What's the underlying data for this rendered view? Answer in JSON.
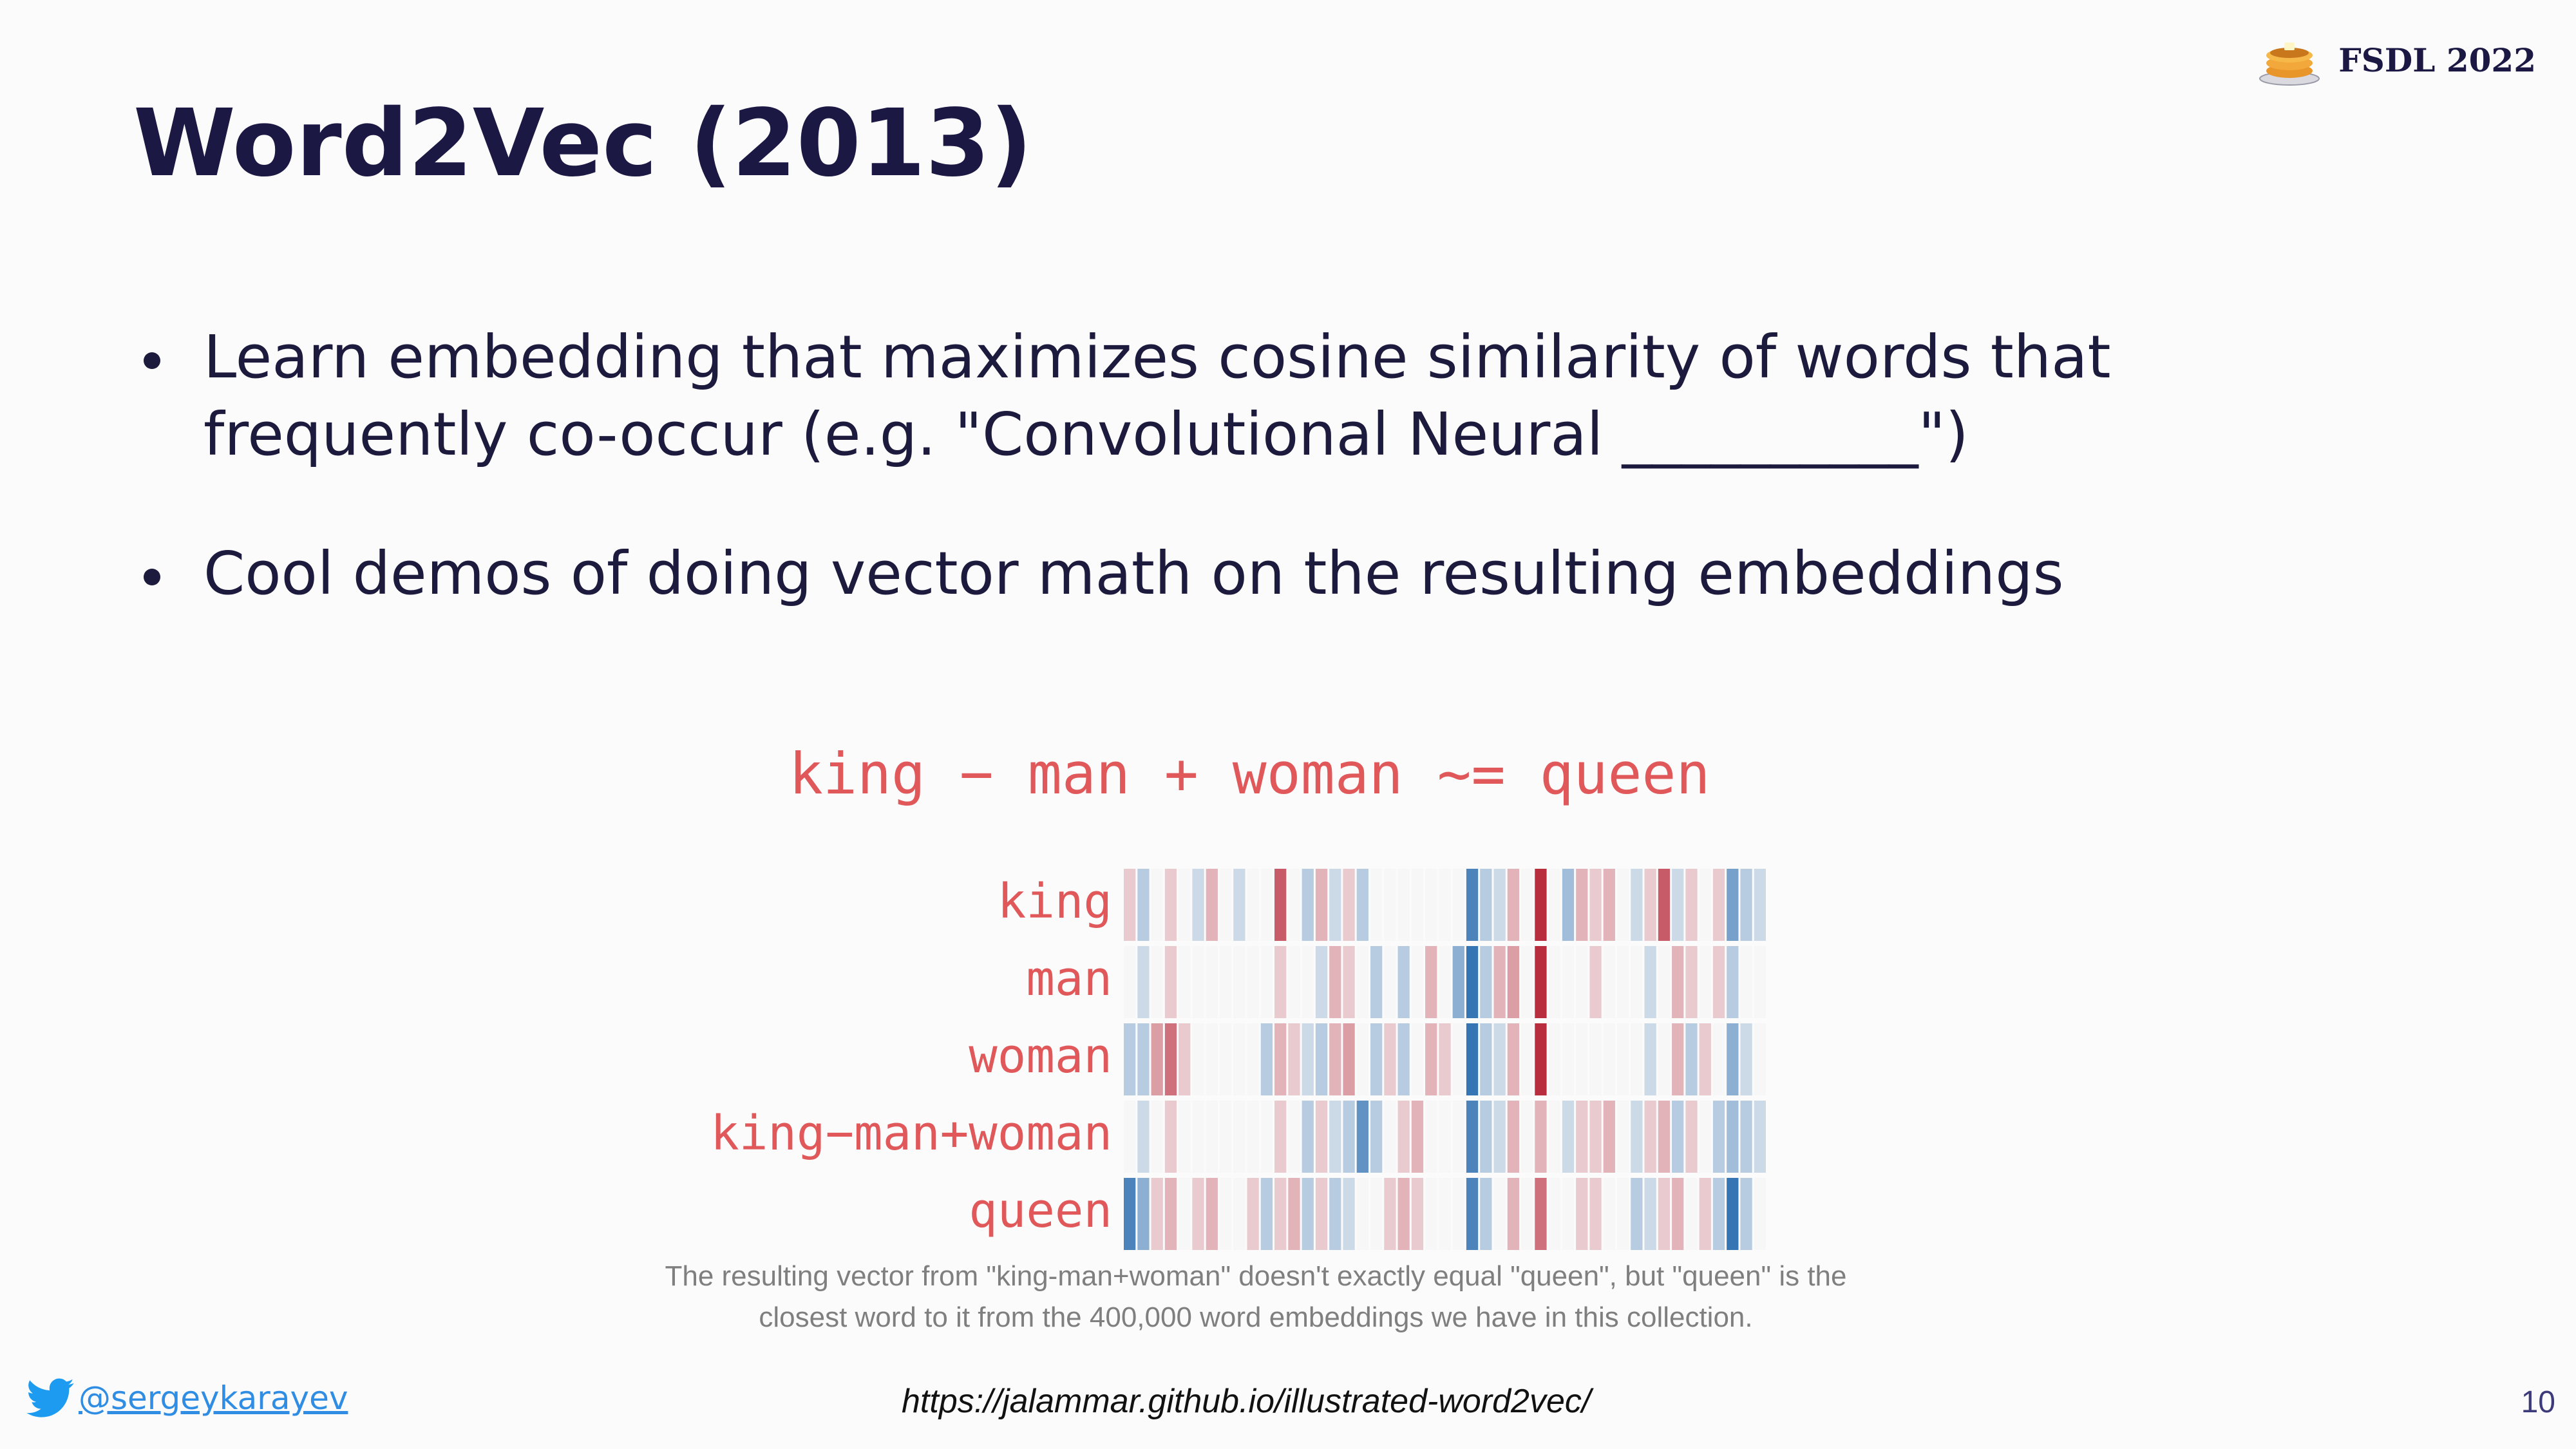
{
  "slide": {
    "title": "Word2Vec (2013)",
    "brand": {
      "label": "FSDL 2022",
      "icon": "pancakes-icon"
    },
    "bullets": [
      "Learn embedding that maximizes cosine similarity of words that frequently co-occur (e.g. \"Convolutional Neural __________\")",
      "Cool demos of doing vector math on the resulting embeddings"
    ],
    "figure": {
      "equation": "king − man + woman ~= queen",
      "caption_line1": "The resulting vector from \"king-man+woman\" doesn't exactly equal \"queen\", but \"queen\" is the",
      "caption_line2": "closest word to it from the 400,000 word embeddings we have in this collection."
    },
    "footer": {
      "twitter_icon": "twitter-bird-icon",
      "handle": "@sergeykarayev",
      "source": "https://jalammar.github.io/illustrated-word2vec/",
      "page_number": "10"
    }
  },
  "chart_data": {
    "type": "heatmap",
    "rows": [
      "king",
      "man",
      "woman",
      "king−man+woman",
      "queen"
    ],
    "colormap": "RdBu (red = positive, blue = negative)",
    "values": [
      [
        0.2,
        -0.3,
        0,
        0.2,
        0,
        -0.2,
        0.3,
        0,
        -0.2,
        0,
        0,
        0.7,
        0,
        -0.3,
        0.3,
        -0.2,
        0.2,
        -0.3,
        0,
        0,
        0,
        0,
        0,
        0,
        0,
        -0.8,
        -0.3,
        -0.2,
        0.3,
        0,
        0.9,
        0,
        -0.4,
        0.3,
        0.2,
        0.3,
        0,
        -0.2,
        0.2,
        0.7,
        -0.2,
        0.2,
        0,
        0.2,
        -0.6,
        -0.3,
        -0.2
      ],
      [
        0,
        -0.2,
        0,
        0.2,
        0,
        0,
        0,
        0,
        0,
        0,
        0,
        0.2,
        0,
        0,
        -0.2,
        0.3,
        0.2,
        0,
        -0.3,
        0,
        -0.3,
        0,
        0.3,
        0,
        -0.5,
        -0.9,
        -0.3,
        0.3,
        0.4,
        0,
        0.9,
        0,
        0,
        0,
        0.2,
        0,
        0,
        0,
        -0.2,
        0,
        0.3,
        0.2,
        0,
        0.2,
        -0.3,
        0,
        0
      ],
      [
        -0.3,
        -0.3,
        0.4,
        0.6,
        0.2,
        0,
        0,
        0,
        0,
        0,
        -0.3,
        0.3,
        0.2,
        -0.2,
        -0.3,
        0.3,
        0.4,
        0,
        -0.3,
        0.2,
        -0.3,
        0,
        0.3,
        0.2,
        0,
        -0.9,
        -0.3,
        -0.2,
        0.3,
        0,
        0.9,
        0,
        0,
        0,
        0,
        0,
        0,
        0,
        -0.2,
        0,
        0.3,
        -0.3,
        0.2,
        0,
        -0.5,
        -0.2,
        0
      ],
      [
        0,
        -0.2,
        0,
        0.2,
        0,
        0,
        0,
        0,
        0,
        0,
        0,
        0.2,
        0,
        -0.3,
        0.2,
        -0.2,
        -0.3,
        -0.7,
        -0.3,
        0,
        0.2,
        0.3,
        0,
        0,
        0,
        -0.8,
        -0.3,
        -0.2,
        0.3,
        0,
        0.3,
        0,
        -0.2,
        0.2,
        0.2,
        0.3,
        0,
        -0.2,
        0.2,
        0.3,
        -0.3,
        0.2,
        0,
        -0.3,
        -0.4,
        -0.3,
        -0.2
      ],
      [
        -0.8,
        -0.5,
        0.2,
        0.3,
        0,
        0.2,
        0.3,
        0,
        0,
        0.2,
        -0.3,
        0.2,
        0.3,
        -0.3,
        0.2,
        -0.3,
        -0.2,
        0,
        0,
        0.2,
        0.3,
        0.2,
        0,
        0,
        0,
        -0.8,
        -0.3,
        0,
        0.3,
        0,
        0.6,
        0,
        0,
        0.2,
        0.2,
        0,
        0,
        -0.3,
        -0.2,
        0.2,
        0.3,
        0,
        0.2,
        -0.3,
        -0.9,
        -0.3,
        0
      ]
    ]
  }
}
